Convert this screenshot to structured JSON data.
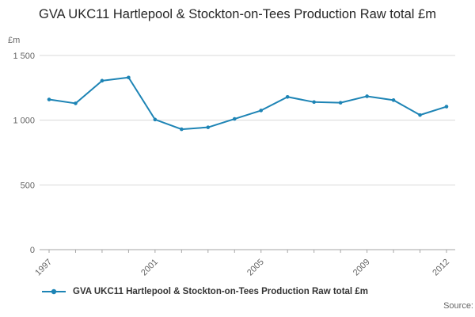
{
  "title": "GVA UKC11 Hartlepool & Stockton-on-Tees Production Raw total £m",
  "source_label": "Source:",
  "legend": {
    "label": "GVA UKC11 Hartlepool & Stockton-on-Tees Production Raw total £m"
  },
  "colors": {
    "line": "#1d84b5",
    "grid": "#d9d9d9",
    "axis": "#a6a6a6",
    "tick_text": "#666666",
    "title_text": "#262626"
  },
  "chart_data": {
    "type": "line",
    "title": "GVA UKC11 Hartlepool & Stockton-on-Tees Production Raw total £m",
    "xlabel": "",
    "ylabel": "£m",
    "ylim": [
      0,
      1500
    ],
    "grid": true,
    "legend_position": "bottom-left",
    "x": [
      1997,
      1998,
      1999,
      2000,
      2001,
      2002,
      2003,
      2004,
      2005,
      2006,
      2007,
      2008,
      2009,
      2010,
      2011,
      2012
    ],
    "series": [
      {
        "name": "GVA UKC11 Hartlepool & Stockton-on-Tees Production Raw total £m",
        "values": [
          1160,
          1130,
          1305,
          1330,
          1005,
          930,
          945,
          1010,
          1075,
          1180,
          1140,
          1135,
          1185,
          1155,
          1040,
          1105
        ]
      }
    ],
    "yticks": [
      0,
      500,
      1000,
      1500
    ],
    "ytick_labels": [
      "0",
      "500",
      "1 000",
      "1 500"
    ],
    "xticks_labeled": [
      1997,
      2001,
      2005,
      2009,
      2012
    ]
  }
}
